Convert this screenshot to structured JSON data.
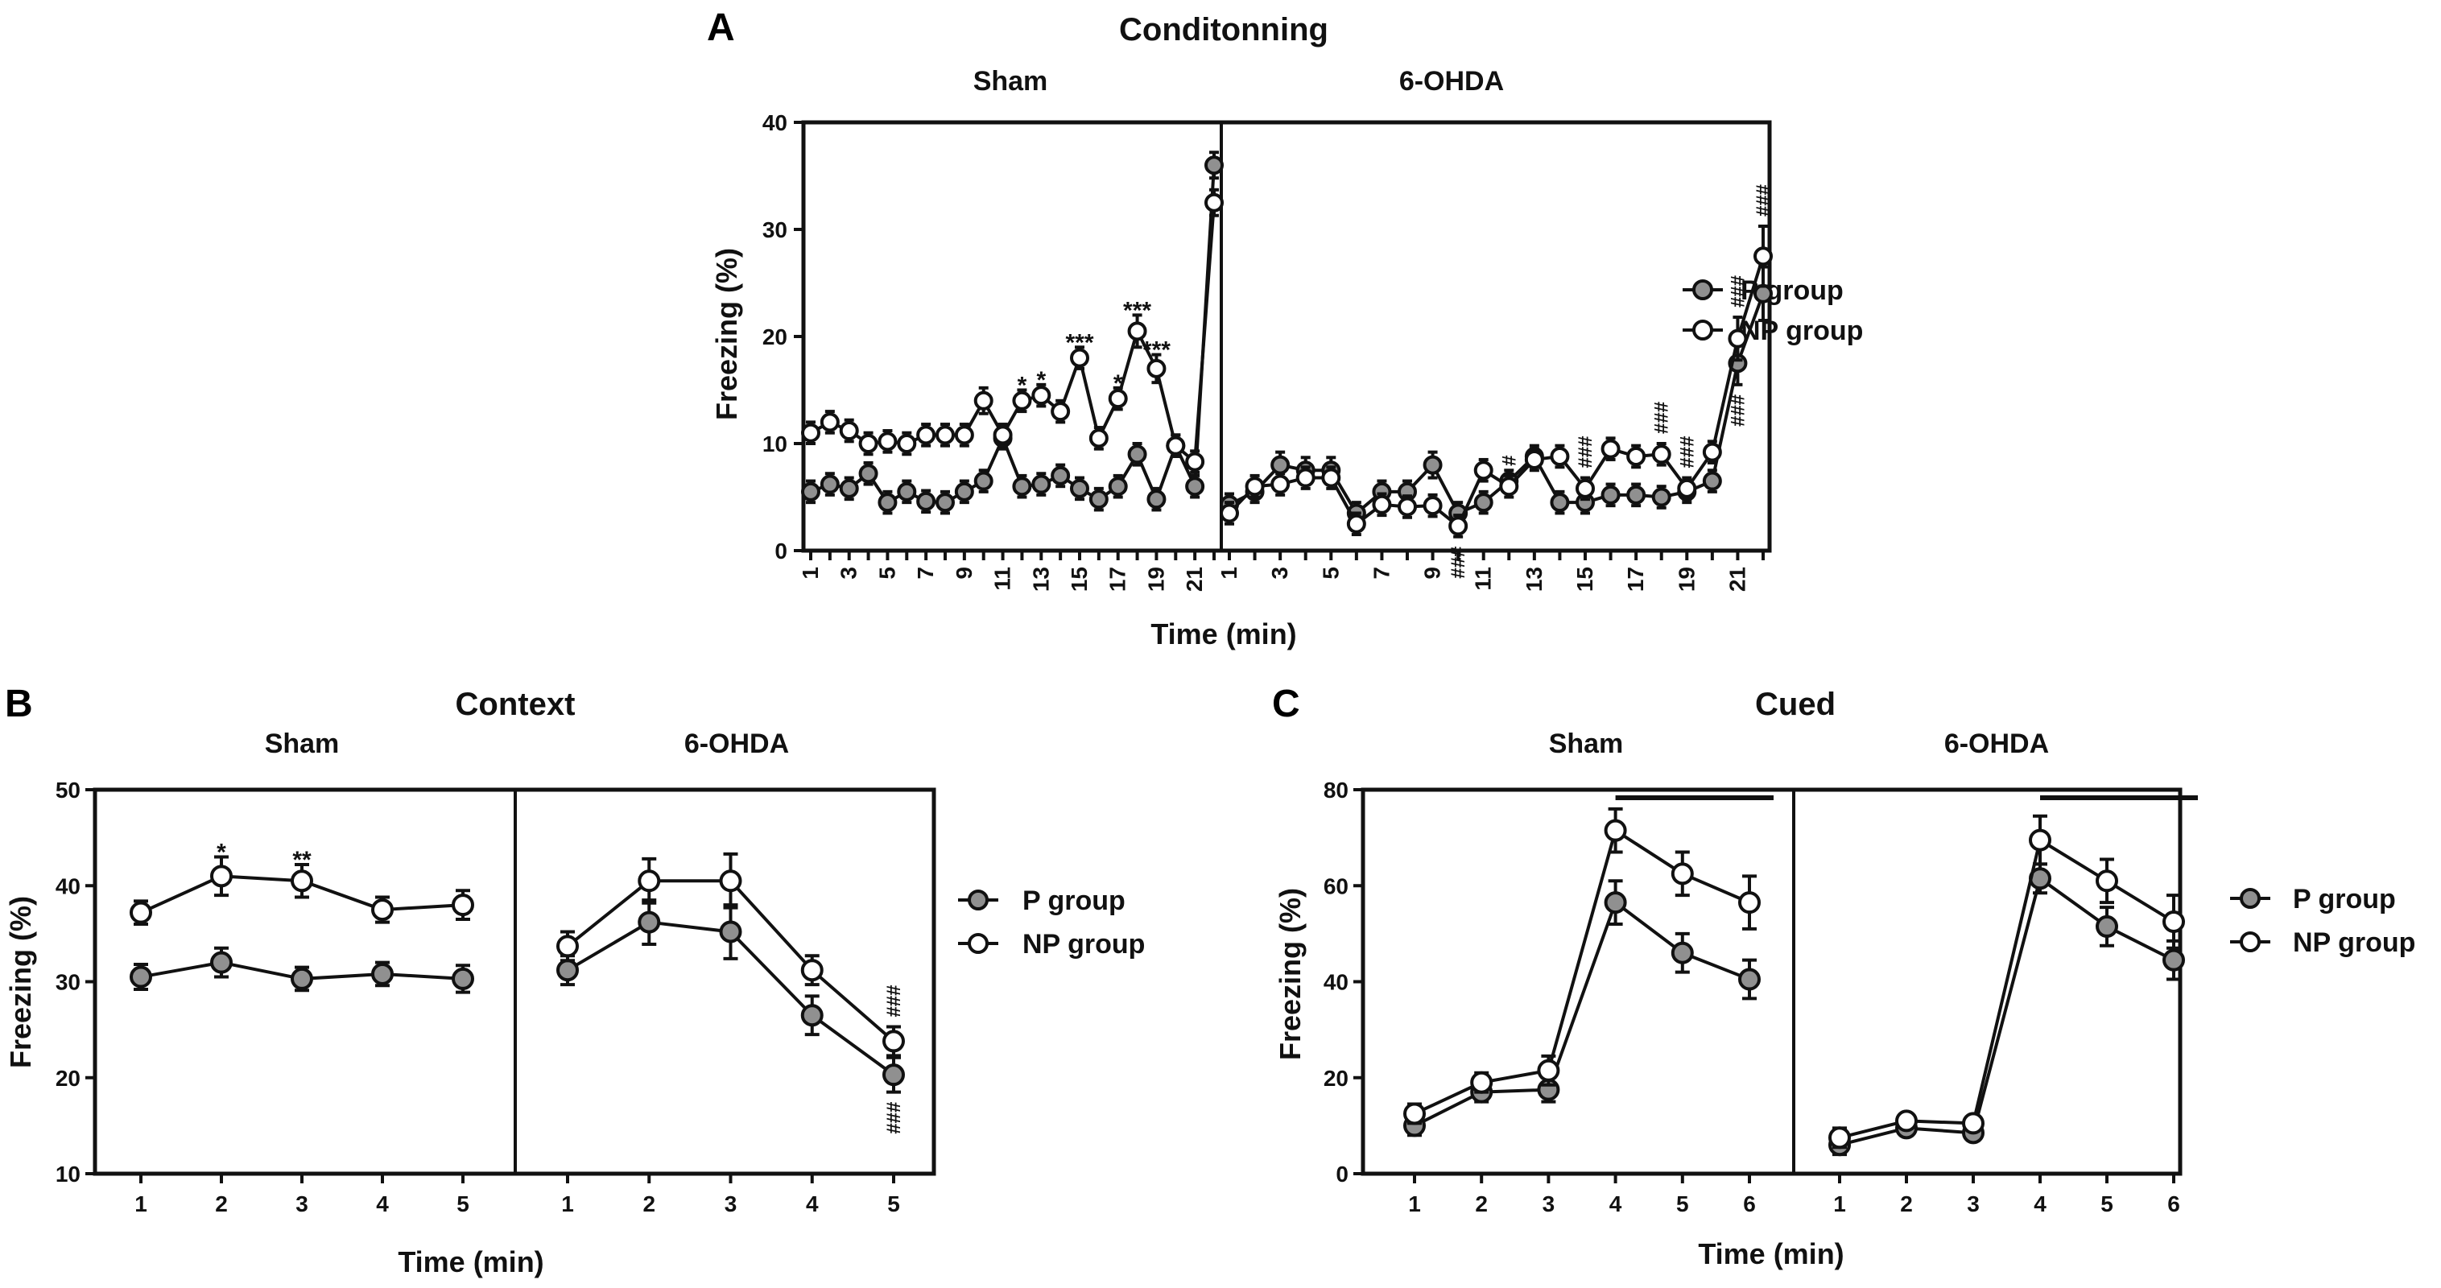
{
  "chart_data": [
    {
      "panel": "A",
      "type": "line",
      "title": "Conditonning",
      "xlabel": "Time (min)",
      "ylabel": "Freezing (%)",
      "ylim": [
        0,
        40
      ],
      "yticks": [
        0,
        10,
        20,
        30,
        40
      ],
      "xtick_labels": [
        "1",
        "3",
        "5",
        "7",
        "9",
        "11",
        "13",
        "15",
        "17",
        "19",
        "21"
      ],
      "legend": [
        "P group",
        "NP group"
      ],
      "legend_position": "right",
      "groups": [
        {
          "name": "Sham",
          "x": [
            1,
            2,
            3,
            4,
            5,
            6,
            7,
            8,
            9,
            10,
            11,
            12,
            13,
            14,
            15,
            16,
            17,
            18,
            19,
            20,
            21,
            22
          ],
          "series": [
            {
              "name": "P group",
              "values": [
                5.5,
                6.2,
                5.8,
                7.2,
                4.5,
                5.5,
                4.6,
                4.5,
                5.5,
                6.5,
                10.5,
                6,
                6.2,
                7,
                5.8,
                4.8,
                6,
                9,
                4.8,
                9.8,
                6,
                36
              ],
              "errors": [
                1,
                1,
                1,
                1,
                1,
                1,
                1,
                1,
                1,
                1,
                1,
                1,
                1,
                1,
                1,
                1,
                1,
                1,
                1,
                1,
                1,
                1.2
              ]
            },
            {
              "name": "NP group",
              "values": [
                11,
                12,
                11.2,
                10,
                10.2,
                10,
                10.8,
                10.8,
                10.8,
                14,
                10.8,
                14,
                14.5,
                13,
                18,
                10.5,
                14.2,
                20.5,
                17,
                9.8,
                8.3,
                32.5
              ],
              "errors": [
                1,
                1,
                1,
                1,
                1,
                1,
                1,
                1,
                1,
                1.2,
                1,
                1,
                1,
                1,
                1,
                1,
                1,
                1.5,
                1.3,
                1,
                1,
                1.2
              ]
            }
          ],
          "annotations": [
            {
              "x": 12,
              "text": "*",
              "series": "NP group"
            },
            {
              "x": 13,
              "text": "*",
              "series": "NP group"
            },
            {
              "x": 15,
              "text": "***",
              "series": "NP group"
            },
            {
              "x": 17,
              "text": "*",
              "series": "NP group"
            },
            {
              "x": 18,
              "text": "***",
              "series": "NP group"
            },
            {
              "x": 19,
              "text": "***",
              "series": "NP group"
            }
          ]
        },
        {
          "name": "6-OHDA",
          "x": [
            1,
            2,
            3,
            4,
            5,
            6,
            7,
            8,
            9,
            10,
            11,
            12,
            13,
            14,
            15,
            16,
            17,
            18,
            19,
            20,
            21,
            22
          ],
          "series": [
            {
              "name": "P group",
              "values": [
                4.3,
                5.5,
                8,
                7.5,
                7.5,
                3.5,
                5.5,
                5.5,
                8,
                3.5,
                4.5,
                6.5,
                8.8,
                4.5,
                4.5,
                5.2,
                5.2,
                5,
                5.5,
                6.5,
                17.5,
                24
              ],
              "errors": [
                1,
                1,
                1.2,
                1.2,
                1.2,
                1,
                1,
                1,
                1.2,
                1,
                1,
                1,
                1,
                1,
                1,
                1,
                1,
                1,
                1,
                1,
                2,
                2.5
              ]
            },
            {
              "name": "NP group",
              "values": [
                3.5,
                6,
                6.2,
                6.8,
                6.8,
                2.5,
                4.3,
                4.1,
                4.2,
                2.3,
                7.5,
                6,
                8.5,
                8.8,
                5.8,
                9.5,
                8.8,
                9,
                5.8,
                9.2,
                19.8,
                27.5
              ],
              "errors": [
                1,
                1,
                1,
                1,
                1,
                1,
                1,
                1,
                1,
                1,
                1,
                1,
                1,
                1,
                1,
                1,
                1,
                1,
                1,
                1,
                2,
                2.8
              ]
            }
          ],
          "annotations": [
            {
              "x": 10,
              "text": "###",
              "series": "NP group",
              "position": "below"
            },
            {
              "x": 12,
              "text": "#",
              "series": "NP group"
            },
            {
              "x": 15,
              "text": "###",
              "series": "NP group"
            },
            {
              "x": 18,
              "text": "###",
              "series": "NP group"
            },
            {
              "x": 19,
              "text": "###",
              "series": "NP group"
            },
            {
              "x": 21,
              "text": "###",
              "series": "NP group"
            },
            {
              "x": 22,
              "text": "###",
              "series": "NP group"
            },
            {
              "x": 21,
              "text": "###",
              "series": "P group",
              "position": "below"
            }
          ]
        }
      ]
    },
    {
      "panel": "B",
      "type": "line",
      "title": "Context",
      "xlabel": "Time (min)",
      "ylabel": "Freezing (%)",
      "ylim": [
        10,
        50
      ],
      "yticks": [
        10,
        20,
        30,
        40,
        50
      ],
      "xtick_labels": [
        "1",
        "2",
        "3",
        "4",
        "5"
      ],
      "legend": [
        "P group",
        "NP group"
      ],
      "legend_position": "right",
      "groups": [
        {
          "name": "Sham",
          "x": [
            1,
            2,
            3,
            4,
            5
          ],
          "series": [
            {
              "name": "P group",
              "values": [
                30.5,
                32,
                30.3,
                30.8,
                30.3
              ],
              "errors": [
                1.3,
                1.5,
                1.2,
                1.2,
                1.4
              ]
            },
            {
              "name": "NP group",
              "values": [
                37.2,
                41,
                40.5,
                37.5,
                38
              ],
              "errors": [
                1.2,
                2,
                1.7,
                1.3,
                1.5
              ]
            }
          ],
          "annotations": [
            {
              "x": 2,
              "text": "*",
              "series": "NP group"
            },
            {
              "x": 3,
              "text": "**",
              "series": "NP group"
            }
          ]
        },
        {
          "name": "6-OHDA",
          "x": [
            1,
            2,
            3,
            4,
            5
          ],
          "series": [
            {
              "name": "P group",
              "values": [
                31.2,
                36.2,
                35.2,
                26.5,
                20.3
              ],
              "errors": [
                1.5,
                2.3,
                2.8,
                2,
                1.8
              ]
            },
            {
              "name": "NP group",
              "values": [
                33.7,
                40.5,
                40.5,
                31.2,
                23.8
              ],
              "errors": [
                1.5,
                2.3,
                2.8,
                1.5,
                1.5
              ]
            }
          ],
          "annotations": [
            {
              "x": 5,
              "text": "###",
              "series": "NP group"
            },
            {
              "x": 5,
              "text": "###",
              "series": "P group",
              "position": "below"
            }
          ]
        }
      ]
    },
    {
      "panel": "C",
      "type": "line",
      "title": "Cued",
      "xlabel": "Time (min)",
      "ylabel": "Freezing (%)",
      "ylim": [
        0,
        80
      ],
      "yticks": [
        0,
        20,
        40,
        60,
        80
      ],
      "xtick_labels": [
        "1",
        "2",
        "3",
        "4",
        "5",
        "6"
      ],
      "legend": [
        "P group",
        "NP group"
      ],
      "legend_position": "right",
      "groups": [
        {
          "name": "Sham",
          "x": [
            1,
            2,
            3,
            4,
            5,
            6
          ],
          "series": [
            {
              "name": "P group",
              "values": [
                10,
                17,
                17.5,
                56.5,
                46,
                40.5
              ],
              "errors": [
                2,
                2,
                2.5,
                4.5,
                4,
                4
              ]
            },
            {
              "name": "NP group",
              "values": [
                12.5,
                19,
                21.5,
                71.5,
                62.5,
                56.5
              ],
              "errors": [
                2,
                2,
                3,
                4.5,
                4.5,
                5.5
              ]
            }
          ],
          "bar": [
            4,
            6
          ]
        },
        {
          "name": "6-OHDA",
          "x": [
            1,
            2,
            3,
            4,
            5,
            6
          ],
          "series": [
            {
              "name": "P group",
              "values": [
                6,
                9.5,
                8.5,
                61.5,
                51.5,
                44.5
              ],
              "errors": [
                2,
                1.5,
                1.5,
                3,
                4,
                4
              ]
            },
            {
              "name": "NP group",
              "values": [
                7.5,
                11,
                10.5,
                69.5,
                61,
                52.5
              ],
              "errors": [
                2,
                1.5,
                1.5,
                5,
                4.5,
                5.5
              ]
            }
          ],
          "bar": [
            4,
            6
          ]
        }
      ]
    }
  ]
}
